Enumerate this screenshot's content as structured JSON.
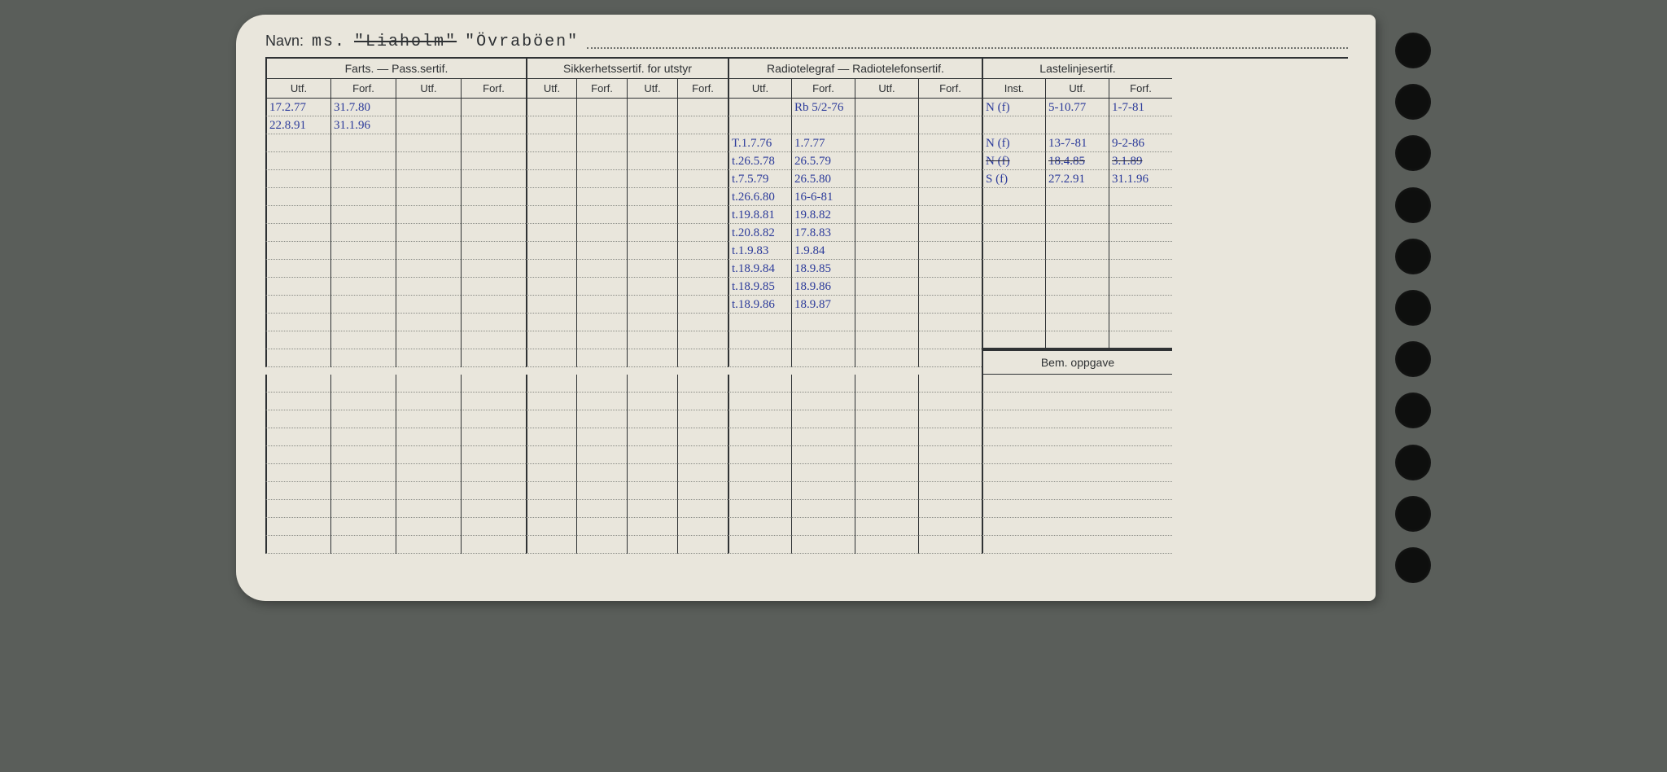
{
  "navn": {
    "label": "Navn:",
    "prefix": "ms.",
    "struck": "\"Liaholm\"",
    "current": "\"Övraböen\""
  },
  "groups": {
    "farts": {
      "title": "Farts. — Pass.sertif.",
      "struck_word": "Pass."
    },
    "sikker": "Sikkerhetssertif. for utstyr",
    "radio": {
      "title": "Radiotelegraf — Radiotelefonsertif.",
      "struck_word": "telegraf"
    },
    "laste": "Lastelinjesertif."
  },
  "sub": {
    "utf": "Utf.",
    "forf": "Forf.",
    "inst": "Inst."
  },
  "bem": "Bem. oppgave",
  "rows": [
    {
      "f_utf": "17.2.77",
      "f_forf": "31.7.80",
      "r_utf": "",
      "r_forf": "Rb 5/2-76",
      "l_inst": "N (f)",
      "l_utf": "5-10.77",
      "l_forf": "1-7-81"
    },
    {
      "f_utf": "22.8.91",
      "f_forf": "31.1.96",
      "r_utf": "",
      "r_forf": "",
      "l_inst": "",
      "l_utf": "",
      "l_forf": ""
    },
    {
      "r_utf": "T.1.7.76",
      "r_forf": "1.7.77",
      "l_inst": "N (f)",
      "l_utf": "13-7-81",
      "l_forf": "9-2-86"
    },
    {
      "r_utf": "t.26.5.78",
      "r_forf": "26.5.79",
      "l_inst": "N (f)",
      "l_utf": "18.4.85",
      "l_forf": "3.1.89",
      "l_struck": true
    },
    {
      "r_utf": "t.7.5.79",
      "r_forf": "26.5.80",
      "l_inst": "S (f)",
      "l_utf": "27.2.91",
      "l_forf": "31.1.96"
    },
    {
      "r_utf": "t.26.6.80",
      "r_forf": "16-6-81"
    },
    {
      "r_utf": "t.19.8.81",
      "r_forf": "19.8.82"
    },
    {
      "r_utf": "t.20.8.82",
      "r_forf": "17.8.83"
    },
    {
      "r_utf": "t.1.9.83",
      "r_forf": "1.9.84"
    },
    {
      "r_utf": "t.18.9.84",
      "r_forf": "18.9.85"
    },
    {
      "r_utf": "t.18.9.85",
      "r_forf": "18.9.86"
    },
    {
      "r_utf": "t.18.9.86",
      "r_forf": "18.9.87"
    },
    {},
    {},
    {},
    {},
    {},
    {},
    {},
    {},
    {},
    {},
    {},
    {},
    {}
  ],
  "laste_rows_before_bem": 14,
  "colors": {
    "paper": "#e9e6dc",
    "ink_blue": "#2540c0",
    "ink_purple": "#5843b0",
    "rule": "#2f3234",
    "bg": "#5a5e5a"
  }
}
